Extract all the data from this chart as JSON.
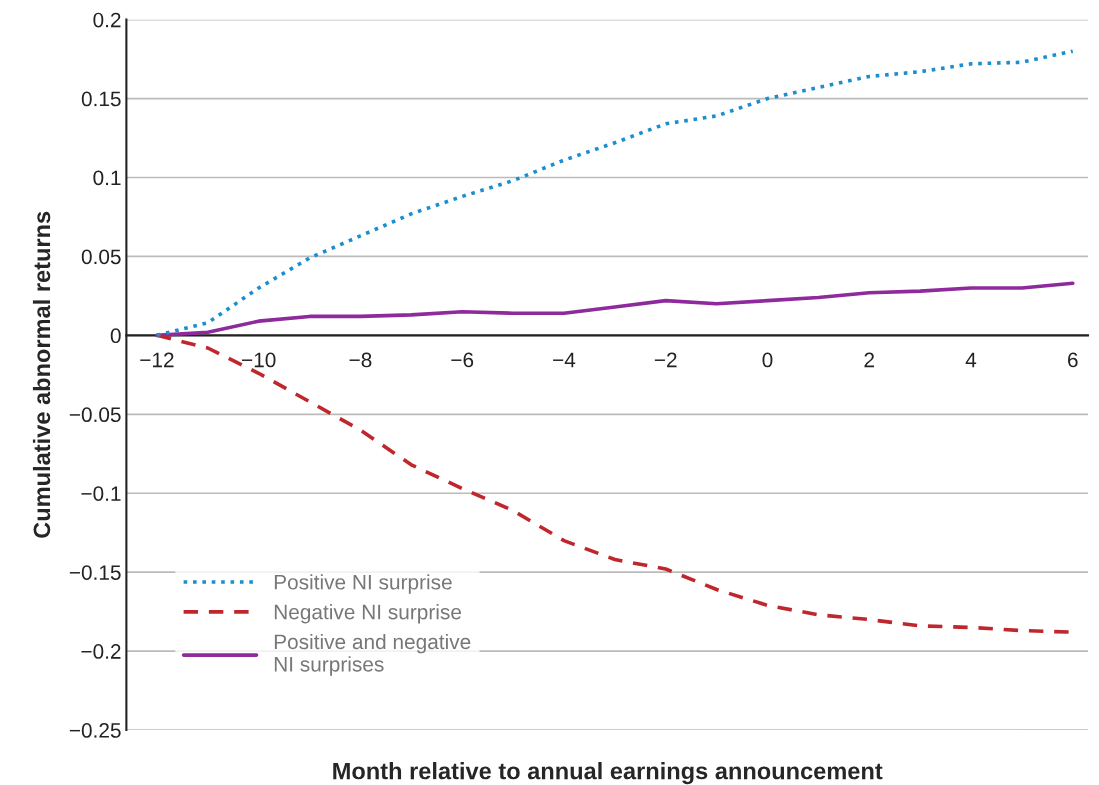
{
  "chart_data": {
    "type": "line",
    "xlabel": "Month relative to annual earnings announcement",
    "ylabel": "Cumulative abnormal returns",
    "x": [
      -12,
      -11,
      -10,
      -9,
      -8,
      -7,
      -6,
      -5,
      -4,
      -3,
      -2,
      -1,
      0,
      1,
      2,
      3,
      4,
      5,
      6
    ],
    "series": [
      {
        "name": "Positive NI surprise",
        "color": "#1a8fd0",
        "line_style": "dotted",
        "values": [
          0,
          0.008,
          0.03,
          0.049,
          0.063,
          0.077,
          0.088,
          0.098,
          0.111,
          0.122,
          0.134,
          0.139,
          0.15,
          0.157,
          0.164,
          0.167,
          0.172,
          0.173,
          0.18
        ]
      },
      {
        "name": "Negative NI surprise",
        "color": "#c0272d",
        "line_style": "dashed",
        "values": [
          0,
          -0.008,
          -0.024,
          -0.042,
          -0.06,
          -0.082,
          -0.097,
          -0.111,
          -0.13,
          -0.142,
          -0.148,
          -0.161,
          -0.171,
          -0.177,
          -0.18,
          -0.184,
          -0.185,
          -0.187,
          -0.188
        ]
      },
      {
        "name": "Positive and negative\nNI surprises",
        "color": "#8e2a9c",
        "line_style": "solid",
        "values": [
          0,
          0.002,
          0.009,
          0.012,
          0.012,
          0.013,
          0.015,
          0.014,
          0.014,
          0.018,
          0.022,
          0.02,
          0.022,
          0.024,
          0.027,
          0.028,
          0.03,
          0.03,
          0.033
        ]
      }
    ],
    "xlim": [
      -12.6,
      6.3
    ],
    "xticks": [
      {
        "value": -12,
        "label": "−12"
      },
      {
        "value": -10,
        "label": "−10"
      },
      {
        "value": -8,
        "label": "−8"
      },
      {
        "value": -6,
        "label": "−6"
      },
      {
        "value": -4,
        "label": "−4"
      },
      {
        "value": -2,
        "label": "−2"
      },
      0,
      2,
      4,
      6
    ],
    "ylim": [
      -0.25,
      0.2
    ],
    "yticks": [
      {
        "value": -0.25,
        "label": "−0.25"
      },
      {
        "value": -0.2,
        "label": "−0.2"
      },
      {
        "value": -0.15,
        "label": "−0.15"
      },
      {
        "value": -0.1,
        "label": "−0.1"
      },
      {
        "value": -0.05,
        "label": "−0.05"
      },
      0,
      0.05,
      0.1,
      0.15,
      0.2
    ],
    "grid": "y",
    "legend": "bottom left"
  }
}
